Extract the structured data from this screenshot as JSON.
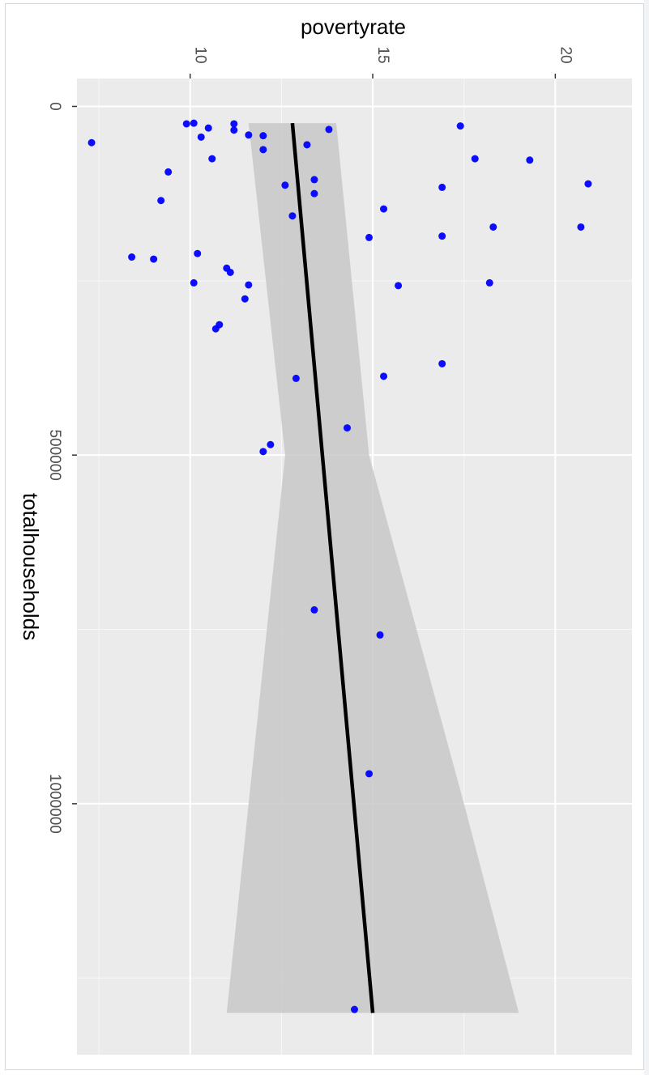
{
  "chart_data": {
    "type": "scatter",
    "orientation": "rotated-90",
    "xlabel": "totalhouseholds",
    "ylabel": "povertyrate",
    "xlim": [
      -40000,
      1360000
    ],
    "ylim": [
      6.9,
      22.1
    ],
    "x_ticks": [
      0,
      500000,
      1000000
    ],
    "x_tick_labels": [
      "0",
      "500000",
      "1000000"
    ],
    "y_ticks": [
      10,
      15,
      20
    ],
    "y_tick_labels": [
      "10",
      "15",
      "20"
    ],
    "grid": true,
    "point_color": "#0000ff",
    "line_color": "#000000",
    "band_color": "#c8c8c8",
    "panel_color": "#ebebeb",
    "points": [
      {
        "x": 25000,
        "y": 9.9
      },
      {
        "x": 24000,
        "y": 10.1
      },
      {
        "x": 31000,
        "y": 10.5
      },
      {
        "x": 44000,
        "y": 10.3
      },
      {
        "x": 52000,
        "y": 7.3
      },
      {
        "x": 25000,
        "y": 11.2
      },
      {
        "x": 34000,
        "y": 11.2
      },
      {
        "x": 41000,
        "y": 11.6
      },
      {
        "x": 42000,
        "y": 12.0
      },
      {
        "x": 62000,
        "y": 12.0
      },
      {
        "x": 55000,
        "y": 13.2
      },
      {
        "x": 33000,
        "y": 13.8
      },
      {
        "x": 28000,
        "y": 17.4
      },
      {
        "x": 75000,
        "y": 10.6
      },
      {
        "x": 75000,
        "y": 17.8
      },
      {
        "x": 77000,
        "y": 19.3
      },
      {
        "x": 94000,
        "y": 9.4
      },
      {
        "x": 105000,
        "y": 13.4
      },
      {
        "x": 113000,
        "y": 12.6
      },
      {
        "x": 116000,
        "y": 16.9
      },
      {
        "x": 111000,
        "y": 20.9
      },
      {
        "x": 125000,
        "y": 13.4
      },
      {
        "x": 135000,
        "y": 9.2
      },
      {
        "x": 147000,
        "y": 15.3
      },
      {
        "x": 157000,
        "y": 12.8
      },
      {
        "x": 173000,
        "y": 18.3
      },
      {
        "x": 173000,
        "y": 20.7
      },
      {
        "x": 186000,
        "y": 16.9
      },
      {
        "x": 188000,
        "y": 14.9
      },
      {
        "x": 211000,
        "y": 10.2
      },
      {
        "x": 216000,
        "y": 8.4
      },
      {
        "x": 219000,
        "y": 9.0
      },
      {
        "x": 232000,
        "y": 11.0
      },
      {
        "x": 238000,
        "y": 11.1
      },
      {
        "x": 253000,
        "y": 10.1
      },
      {
        "x": 253000,
        "y": 18.2
      },
      {
        "x": 256000,
        "y": 11.6
      },
      {
        "x": 257000,
        "y": 15.7
      },
      {
        "x": 276000,
        "y": 11.5
      },
      {
        "x": 313000,
        "y": 10.8
      },
      {
        "x": 319000,
        "y": 10.7
      },
      {
        "x": 369000,
        "y": 16.9
      },
      {
        "x": 387000,
        "y": 15.3
      },
      {
        "x": 390000,
        "y": 12.9
      },
      {
        "x": 461000,
        "y": 14.3
      },
      {
        "x": 485000,
        "y": 12.2
      },
      {
        "x": 495000,
        "y": 12.0
      },
      {
        "x": 722000,
        "y": 13.4
      },
      {
        "x": 758000,
        "y": 15.2
      },
      {
        "x": 957000,
        "y": 14.9
      },
      {
        "x": 1295000,
        "y": 14.5
      }
    ],
    "smooth_line": [
      {
        "x": 24000,
        "y": 12.8
      },
      {
        "x": 1300000,
        "y": 15.0
      }
    ],
    "confidence_band": {
      "x": [
        24000,
        500000,
        1000000,
        1300000
      ],
      "lower": [
        11.6,
        12.6,
        11.6,
        11.0
      ],
      "upper": [
        14.0,
        14.9,
        17.5,
        19.0
      ]
    }
  }
}
